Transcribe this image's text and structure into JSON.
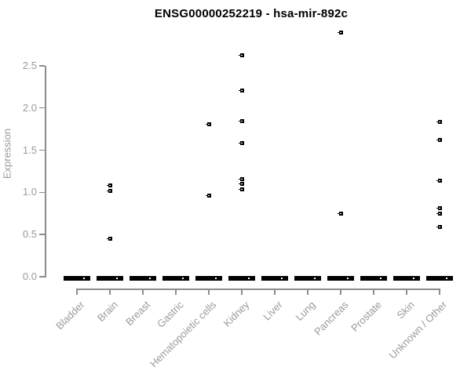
{
  "colors": {
    "title": "#000000",
    "axis_line": "#8c8c8c",
    "axis_text": "#9a9a9a",
    "point": "#000000"
  },
  "chart_data": {
    "type": "scatter",
    "title": "ENSG00000252219 - hsa-mir-892c",
    "xlabel": "",
    "ylabel": "Expression",
    "ylim": [
      0,
      2.9
    ],
    "yticks": [
      "0.0",
      "0.5",
      "1.0",
      "1.5",
      "2.0",
      "2.5"
    ],
    "grid": false,
    "legend": false,
    "categories": [
      "Bladder",
      "Brain",
      "Breast",
      "Gastric",
      "Hematopoietic cells",
      "Kidney",
      "Liver",
      "Lung",
      "Pancreas",
      "Prostate",
      "Skin",
      "Unknown / Other"
    ],
    "nonzero_values_by_category": [
      [],
      [
        1.08,
        1.02,
        0.45
      ],
      [],
      [],
      [
        1.81,
        0.96
      ],
      [
        2.62,
        2.21,
        1.84,
        1.58,
        1.16,
        1.1,
        1.04
      ],
      [],
      [],
      [
        2.89,
        0.75
      ],
      [],
      [],
      [
        1.83,
        1.62,
        1.14,
        0.81,
        0.75,
        0.59
      ]
    ],
    "zero_value_cluster_in_every_category": true,
    "note": "dense cluster of points at expression 0 in every category drawn as a thick black dash"
  }
}
